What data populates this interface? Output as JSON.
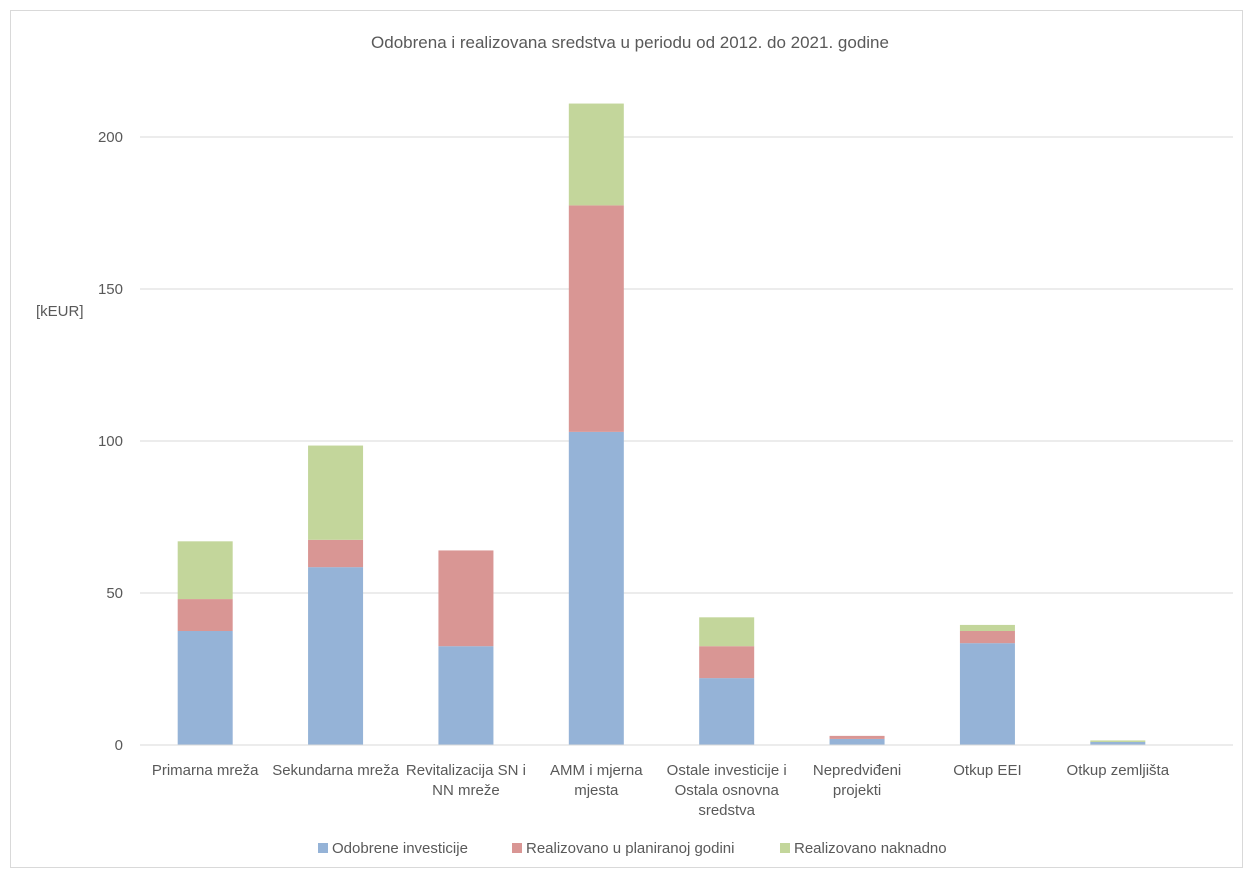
{
  "chart_data": {
    "type": "bar",
    "stacked": true,
    "title": "Odobrena i realizovana sredstva u periodu od 2012. do 2021. godine",
    "ylabel": "[kEUR]",
    "xlabel": "",
    "ylim": [
      0,
      230
    ],
    "yticks": [
      0,
      50,
      100,
      150,
      200
    ],
    "grid": true,
    "legend_position": "bottom",
    "categories": [
      [
        "Primarna mreža"
      ],
      [
        "Sekundarna mreža"
      ],
      [
        "Revitalizacija SN i",
        "NN mreže"
      ],
      [
        "AMM i mjerna",
        "mjesta"
      ],
      [
        "Ostale investicije i",
        "Ostala osnovna",
        "sredstva"
      ],
      [
        "Nepredviđeni",
        "projekti"
      ],
      [
        "Otkup EEI"
      ],
      [
        "Otkup zemljišta"
      ]
    ],
    "series": [
      {
        "name": "Odobrene investicije",
        "color": "#95b3d7",
        "values": [
          37.5,
          58.5,
          32.5,
          103,
          22,
          2,
          33.5,
          1
        ]
      },
      {
        "name": "Realizovano u planiranoj godini",
        "color": "#d99694",
        "values": [
          10.5,
          9,
          31.5,
          74.5,
          10.5,
          1,
          4,
          0
        ]
      },
      {
        "name": "Realizovano naknadno",
        "color": "#c3d69b",
        "values": [
          19,
          31,
          0,
          33.5,
          9.5,
          0,
          2,
          0.5
        ]
      }
    ]
  }
}
